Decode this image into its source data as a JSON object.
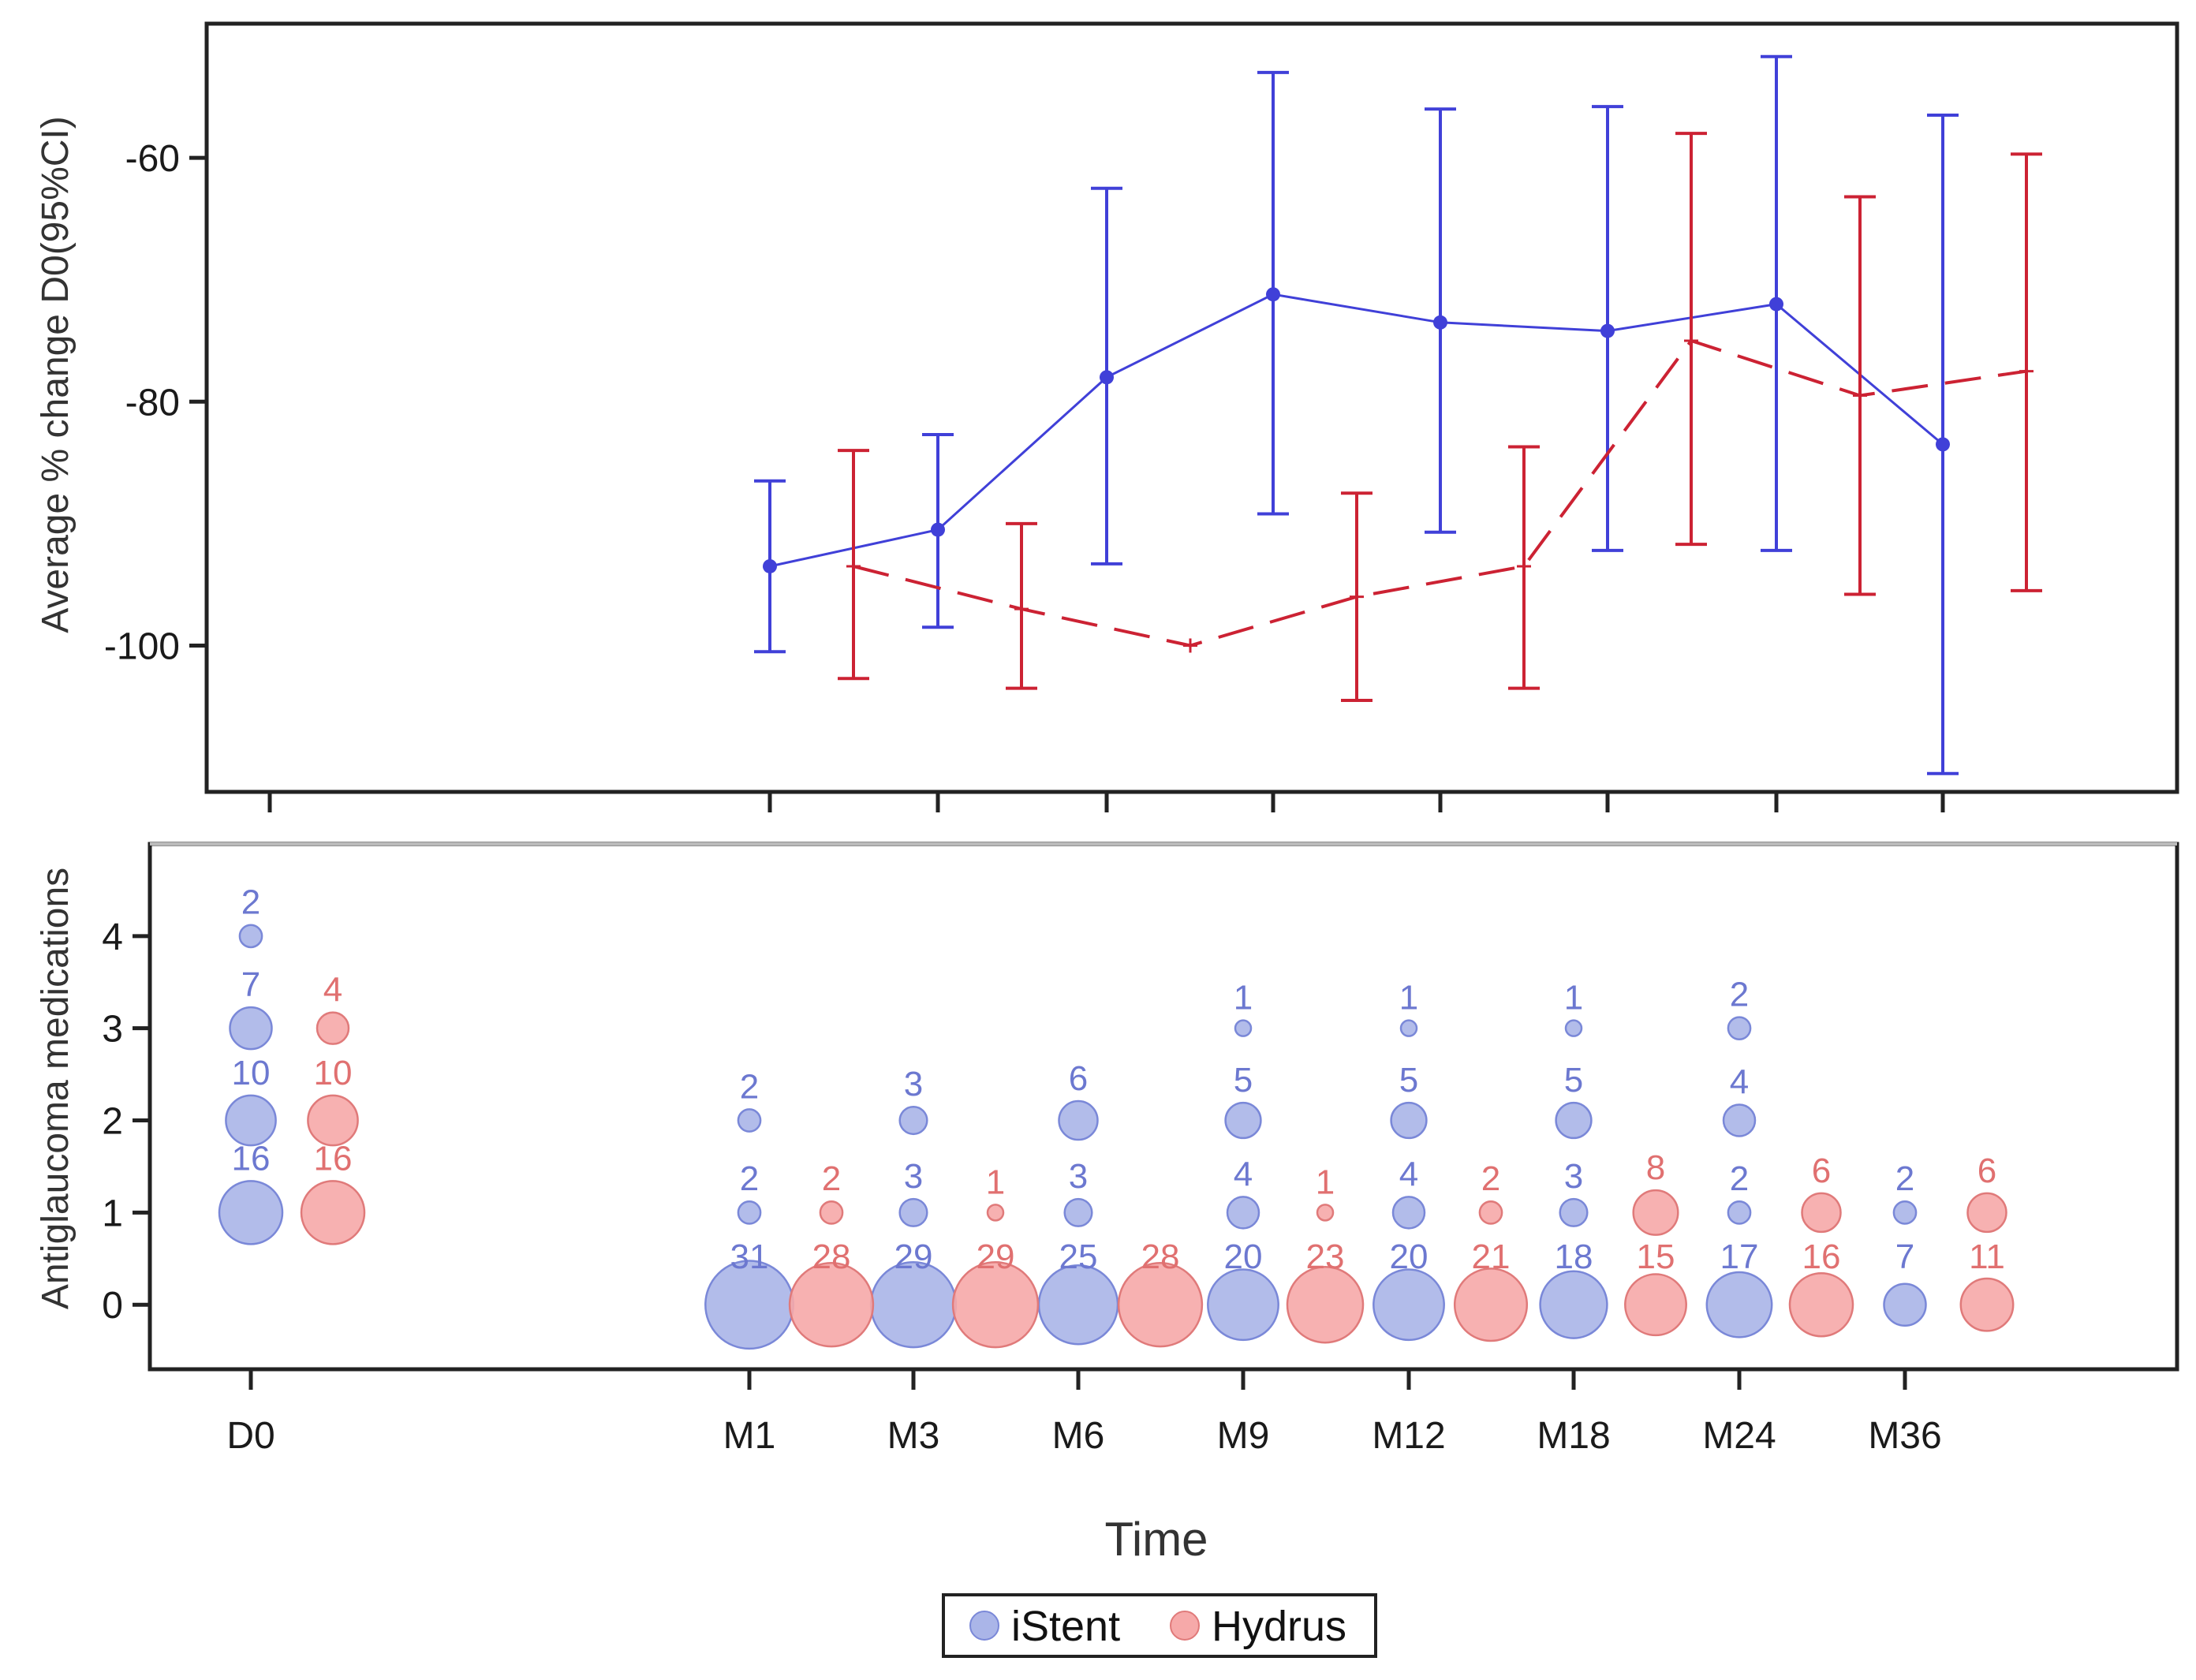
{
  "chart_data": [
    {
      "type": "line",
      "ylabel": "Average % change D0(95%CI)",
      "ylim": [
        -112,
        -49
      ],
      "yticks": [
        -60,
        -80,
        -100
      ],
      "time_points": [
        "D0",
        "M1",
        "M3",
        "M6",
        "M9",
        "M12",
        "M18",
        "M24",
        "M36"
      ],
      "series": [
        {
          "name": "iStent",
          "color": "#4040d8",
          "style": "solid",
          "points": [
            {
              "t": "M1",
              "mean": -93.5,
              "low": -100.5,
              "high": -86.5
            },
            {
              "t": "M3",
              "mean": -90.5,
              "low": -98.5,
              "high": -82.7
            },
            {
              "t": "M6",
              "mean": -78.0,
              "low": -93.3,
              "high": -62.5
            },
            {
              "t": "M9",
              "mean": -71.2,
              "low": -89.2,
              "high": -53.0
            },
            {
              "t": "M12",
              "mean": -73.5,
              "low": -90.7,
              "high": -56.0
            },
            {
              "t": "M18",
              "mean": -74.2,
              "low": -92.2,
              "high": -55.8
            },
            {
              "t": "M24",
              "mean": -72.0,
              "low": -92.2,
              "high": -51.7
            },
            {
              "t": "M36",
              "mean": -83.5,
              "low": -110.5,
              "high": -56.5
            }
          ]
        },
        {
          "name": "Hydrus",
          "color": "#cc2233",
          "style": "dashed",
          "points": [
            {
              "t": "M1",
              "mean": -93.5,
              "low": -102.7,
              "high": -84.0
            },
            {
              "t": "M3",
              "mean": -97.0,
              "low": -103.5,
              "high": -90.0
            },
            {
              "t": "M6",
              "mean": -100.0,
              "low": null,
              "high": null
            },
            {
              "t": "M9",
              "mean": -96.0,
              "low": -104.5,
              "high": -87.5
            },
            {
              "t": "M12",
              "mean": -93.5,
              "low": -103.5,
              "high": -83.7
            },
            {
              "t": "M18",
              "mean": -75.0,
              "low": -91.7,
              "high": -58.0
            },
            {
              "t": "M24",
              "mean": -79.5,
              "low": -95.8,
              "high": -63.2
            },
            {
              "t": "M36",
              "mean": -77.5,
              "low": -95.5,
              "high": -59.7
            }
          ]
        }
      ]
    },
    {
      "type": "scatter",
      "subtype": "bubble",
      "ylabel": "Antiglaucoma medications",
      "xlabel": "Time",
      "ylim": [
        -0.7,
        5.0
      ],
      "yticks": [
        0,
        1,
        2,
        3,
        4
      ],
      "categories": [
        "D0",
        "M1",
        "M3",
        "M6",
        "M9",
        "M12",
        "M18",
        "M24",
        "M36"
      ],
      "series": [
        {
          "name": "iStent",
          "fill": "#aab5e8",
          "edge": "#7a88d8",
          "label_color": "#6c78d0",
          "points": [
            {
              "t": "D0",
              "meds": 1,
              "n": "16"
            },
            {
              "t": "D0",
              "meds": 2,
              "n": "10"
            },
            {
              "t": "D0",
              "meds": 3,
              "n": "7"
            },
            {
              "t": "D0",
              "meds": 4,
              "n": "2"
            },
            {
              "t": "M1",
              "meds": 0,
              "n": "31"
            },
            {
              "t": "M1",
              "meds": 1,
              "n": "2"
            },
            {
              "t": "M1",
              "meds": 2,
              "n": "2"
            },
            {
              "t": "M3",
              "meds": 0,
              "n": "29"
            },
            {
              "t": "M3",
              "meds": 1,
              "n": "3"
            },
            {
              "t": "M3",
              "meds": 2,
              "n": "3"
            },
            {
              "t": "M6",
              "meds": 0,
              "n": "25"
            },
            {
              "t": "M6",
              "meds": 1,
              "n": "3"
            },
            {
              "t": "M6",
              "meds": 2,
              "n": "6"
            },
            {
              "t": "M9",
              "meds": 0,
              "n": "20"
            },
            {
              "t": "M9",
              "meds": 1,
              "n": "4"
            },
            {
              "t": "M9",
              "meds": 2,
              "n": "5"
            },
            {
              "t": "M9",
              "meds": 3,
              "n": "1"
            },
            {
              "t": "M12",
              "meds": 0,
              "n": "20"
            },
            {
              "t": "M12",
              "meds": 1,
              "n": "4"
            },
            {
              "t": "M12",
              "meds": 2,
              "n": "5"
            },
            {
              "t": "M12",
              "meds": 3,
              "n": "1"
            },
            {
              "t": "M18",
              "meds": 0,
              "n": "18"
            },
            {
              "t": "M18",
              "meds": 1,
              "n": "3"
            },
            {
              "t": "M18",
              "meds": 2,
              "n": "5"
            },
            {
              "t": "M18",
              "meds": 3,
              "n": "1"
            },
            {
              "t": "M24",
              "meds": 0,
              "n": "17"
            },
            {
              "t": "M24",
              "meds": 1,
              "n": "2"
            },
            {
              "t": "M24",
              "meds": 2,
              "n": "4"
            },
            {
              "t": "M24",
              "meds": 3,
              "n": "2"
            },
            {
              "t": "M36",
              "meds": 0,
              "n": "7"
            },
            {
              "t": "M36",
              "meds": 1,
              "n": "2"
            }
          ]
        },
        {
          "name": "Hydrus",
          "fill": "#f6a9a9",
          "edge": "#e07a7a",
          "label_color": "#e07070",
          "points": [
            {
              "t": "D0",
              "meds": 1,
              "n": "16"
            },
            {
              "t": "D0",
              "meds": 2,
              "n": "10"
            },
            {
              "t": "D0",
              "meds": 3,
              "n": "4"
            },
            {
              "t": "M1",
              "meds": 0,
              "n": "28"
            },
            {
              "t": "M1",
              "meds": 1,
              "n": "2"
            },
            {
              "t": "M3",
              "meds": 0,
              "n": "29"
            },
            {
              "t": "M3",
              "meds": 1,
              "n": "1"
            },
            {
              "t": "M6",
              "meds": 0,
              "n": "28"
            },
            {
              "t": "M9",
              "meds": 0,
              "n": "23"
            },
            {
              "t": "M9",
              "meds": 1,
              "n": "1"
            },
            {
              "t": "M12",
              "meds": 0,
              "n": "21"
            },
            {
              "t": "M12",
              "meds": 1,
              "n": "2"
            },
            {
              "t": "M18",
              "meds": 0,
              "n": "15"
            },
            {
              "t": "M18",
              "meds": 1,
              "n": "8"
            },
            {
              "t": "M24",
              "meds": 0,
              "n": "16"
            },
            {
              "t": "M24",
              "meds": 1,
              "n": "6"
            },
            {
              "t": "M36",
              "meds": 0,
              "n": "11"
            },
            {
              "t": "M36",
              "meds": 1,
              "n": "6"
            }
          ]
        }
      ]
    }
  ],
  "legend": {
    "entries": [
      {
        "label": "iStent",
        "color": "#aab5e8"
      },
      {
        "label": "Hydrus",
        "color": "#f6a9a9"
      }
    ]
  }
}
